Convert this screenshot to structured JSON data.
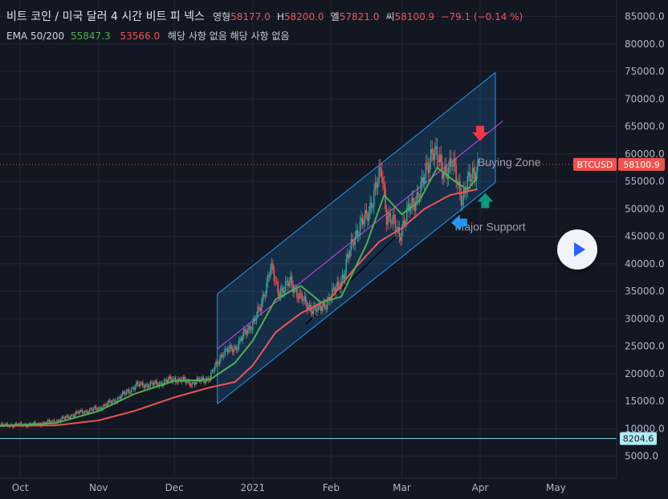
{
  "header": {
    "title": "비트 코인 / 미국 달러  4 시간  비트 피 넥스",
    "open_label": "영형",
    "open_value": "58177.0",
    "high_label": "H",
    "high_value": "58200.0",
    "low_label": "엘",
    "low_value": "57821.0",
    "close_label": "씨",
    "close_value": "58100.9",
    "change": "−79.1 (−0.14 %)"
  },
  "indicator": {
    "label": "EMA 50/200",
    "ema50": "55847.3",
    "ema200": "53566.0",
    "na_text": "해당 사항 없음 해당 사항 없음"
  },
  "colors": {
    "background": "#131722",
    "ema50": "#4caf50",
    "ema200": "#ef5350",
    "channel": "#2196f3",
    "midline": "#e040fb",
    "support_line": "#000000",
    "up_candle": "#26a69a",
    "down_candle": "#ef5350"
  },
  "chart_data": {
    "type": "line",
    "series_kind": "candlestick price with EMA overlays",
    "x_axis": {
      "tick_labels": [
        "Oct",
        "Nov",
        "Dec",
        "2021",
        "Feb",
        "Mar",
        "Apr",
        "May"
      ],
      "tick_dates": [
        "2020-10-01",
        "2020-11-01",
        "2020-12-01",
        "2021-01-01",
        "2021-02-01",
        "2021-03-01",
        "2021-04-01",
        "2021-05-01"
      ],
      "range": [
        "2020-09-23",
        "2021-05-25"
      ]
    },
    "y_axis": {
      "tick_labels": [
        "5000.0",
        "10000.0",
        "15000.0",
        "20000.0",
        "25000.0",
        "30000.0",
        "35000.0",
        "40000.0",
        "45000.0",
        "50000.0",
        "55000.0",
        "60000.0",
        "65000.0",
        "70000.0",
        "75000.0",
        "80000.0",
        "85000.0"
      ],
      "range": [
        1000,
        88000
      ],
      "position": "right"
    },
    "price": {
      "x": [
        "2020-09-23",
        "2020-10-08",
        "2020-10-16",
        "2020-10-24",
        "2020-11-01",
        "2020-11-08",
        "2020-11-16",
        "2020-11-24",
        "2020-12-01",
        "2020-12-08",
        "2020-12-15",
        "2020-12-20",
        "2020-12-25",
        "2021-01-01",
        "2021-01-04",
        "2021-01-08",
        "2021-01-11",
        "2021-01-16",
        "2021-01-22",
        "2021-01-27",
        "2021-02-01",
        "2021-02-06",
        "2021-02-10",
        "2021-02-15",
        "2021-02-21",
        "2021-02-23",
        "2021-02-28",
        "2021-03-04",
        "2021-03-09",
        "2021-03-13",
        "2021-03-17",
        "2021-03-21",
        "2021-03-25",
        "2021-03-28",
        "2021-03-31"
      ],
      "y": [
        10600,
        10800,
        11500,
        12900,
        13700,
        15300,
        17900,
        18100,
        19100,
        18300,
        19300,
        23800,
        24700,
        29300,
        31800,
        39500,
        35000,
        36500,
        32500,
        31500,
        34000,
        38000,
        45000,
        48500,
        57000,
        49000,
        45500,
        50000,
        54000,
        61200,
        57000,
        58000,
        52000,
        55500,
        58100
      ]
    },
    "ema50": {
      "x": [
        "2020-09-23",
        "2020-10-15",
        "2020-11-01",
        "2020-11-15",
        "2020-12-01",
        "2020-12-15",
        "2020-12-25",
        "2021-01-01",
        "2021-01-10",
        "2021-01-20",
        "2021-01-28",
        "2021-02-05",
        "2021-02-15",
        "2021-02-22",
        "2021-03-01",
        "2021-03-08",
        "2021-03-15",
        "2021-03-22",
        "2021-03-27",
        "2021-03-31"
      ],
      "y": [
        10500,
        11000,
        13200,
        16300,
        18700,
        18900,
        22000,
        26000,
        33500,
        36000,
        33000,
        34000,
        43500,
        52500,
        49000,
        51500,
        57500,
        55000,
        53500,
        55800
      ]
    },
    "ema200": {
      "x": [
        "2020-09-23",
        "2020-10-15",
        "2020-11-01",
        "2020-11-15",
        "2020-12-01",
        "2020-12-15",
        "2020-12-25",
        "2021-01-01",
        "2021-01-10",
        "2021-01-20",
        "2021-02-01",
        "2021-02-10",
        "2021-02-20",
        "2021-03-01",
        "2021-03-10",
        "2021-03-20",
        "2021-03-31"
      ],
      "y": [
        10500,
        10600,
        11500,
        13200,
        15700,
        17500,
        18500,
        21500,
        27500,
        31000,
        33800,
        39000,
        44000,
        46500,
        50000,
        52500,
        53566
      ]
    },
    "drawings": {
      "channel_upper": {
        "x": [
          "2020-12-18",
          "2021-04-07"
        ],
        "y": [
          34500,
          74800
        ]
      },
      "channel_lower": {
        "x": [
          "2020-12-18",
          "2021-04-07"
        ],
        "y": [
          14500,
          54800
        ]
      },
      "channel_mid": {
        "x": [
          "2020-12-18",
          "2021-04-10"
        ],
        "y": [
          24500,
          66000
        ]
      },
      "support_line": {
        "x": [
          "2021-01-22",
          "2021-03-02"
        ],
        "y": [
          29000,
          46500
        ]
      },
      "hline": 8204.6
    },
    "annotations": [
      {
        "text": "Buying Zone",
        "x": "2021-03-31",
        "y": 57800
      },
      {
        "text": "Major Support",
        "x": "2021-03-22",
        "y": 46000
      },
      {
        "text": "",
        "marker": "arrow-down",
        "color": "#f23645",
        "x": "2021-04-01",
        "y": 63500
      },
      {
        "text": "",
        "marker": "arrow-up",
        "color": "#089981",
        "x": "2021-04-03",
        "y": 51300
      },
      {
        "text": "",
        "marker": "arrow-left",
        "color": "#2196f3",
        "x": "2021-03-24",
        "y": 47500
      }
    ],
    "price_tag": {
      "label": "BTCUSD",
      "value": "58100.9"
    },
    "hline_tag": "8204.6",
    "grid": true
  }
}
